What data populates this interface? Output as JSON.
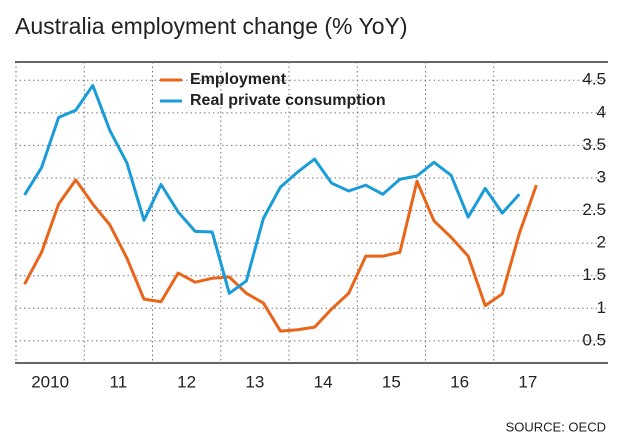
{
  "chart_data": {
    "type": "line",
    "title": "Australia employment change (% YoY)",
    "source": "SOURCE: OECD",
    "x": [
      2010.125,
      2010.375,
      2010.625,
      2010.875,
      2011.125,
      2011.375,
      2011.625,
      2011.875,
      2012.125,
      2012.375,
      2012.625,
      2012.875,
      2013.125,
      2013.375,
      2013.625,
      2013.875,
      2014.125,
      2014.375,
      2014.625,
      2014.875,
      2015.125,
      2015.375,
      2015.625,
      2015.875,
      2016.125,
      2016.375,
      2016.625,
      2016.875,
      2017.125,
      2017.375,
      2017.625
    ],
    "series": [
      {
        "name": "Employment",
        "color": "#e8651a",
        "values": [
          1.37,
          1.86,
          2.6,
          2.97,
          2.6,
          2.28,
          1.77,
          1.14,
          1.1,
          1.54,
          1.4,
          1.46,
          1.48,
          1.23,
          1.08,
          0.65,
          0.67,
          0.71,
          0.99,
          1.23,
          1.8,
          1.8,
          1.86,
          2.95,
          2.34,
          2.09,
          1.8,
          1.04,
          1.22,
          2.15,
          2.89
        ]
      },
      {
        "name": "Real private consumption",
        "color": "#1a9cd8",
        "values": [
          2.74,
          3.16,
          3.93,
          4.04,
          4.42,
          3.73,
          3.23,
          2.35,
          2.9,
          2.48,
          2.18,
          2.17,
          1.23,
          1.42,
          2.38,
          2.86,
          3.09,
          3.29,
          2.92,
          2.8,
          2.89,
          2.75,
          2.98,
          3.03,
          3.24,
          3.04,
          2.4,
          2.84,
          2.46,
          2.75,
          null
        ]
      }
    ],
    "xlim": [
      2010,
      2018
    ],
    "xticks": [
      {
        "value": 2010.5,
        "label": "2010"
      },
      {
        "value": 2011.5,
        "label": "11"
      },
      {
        "value": 2012.5,
        "label": "12"
      },
      {
        "value": 2013.5,
        "label": "13"
      },
      {
        "value": 2014.5,
        "label": "14"
      },
      {
        "value": 2015.5,
        "label": "15"
      },
      {
        "value": 2016.5,
        "label": "16"
      },
      {
        "value": 2017.5,
        "label": "17"
      }
    ],
    "ylim": [
      0.16,
      4.78
    ],
    "yticks": [
      0.5,
      1.0,
      1.5,
      2.0,
      2.5,
      3.0,
      3.5,
      4.0,
      4.5
    ],
    "grid": true,
    "legend": "upper left"
  }
}
